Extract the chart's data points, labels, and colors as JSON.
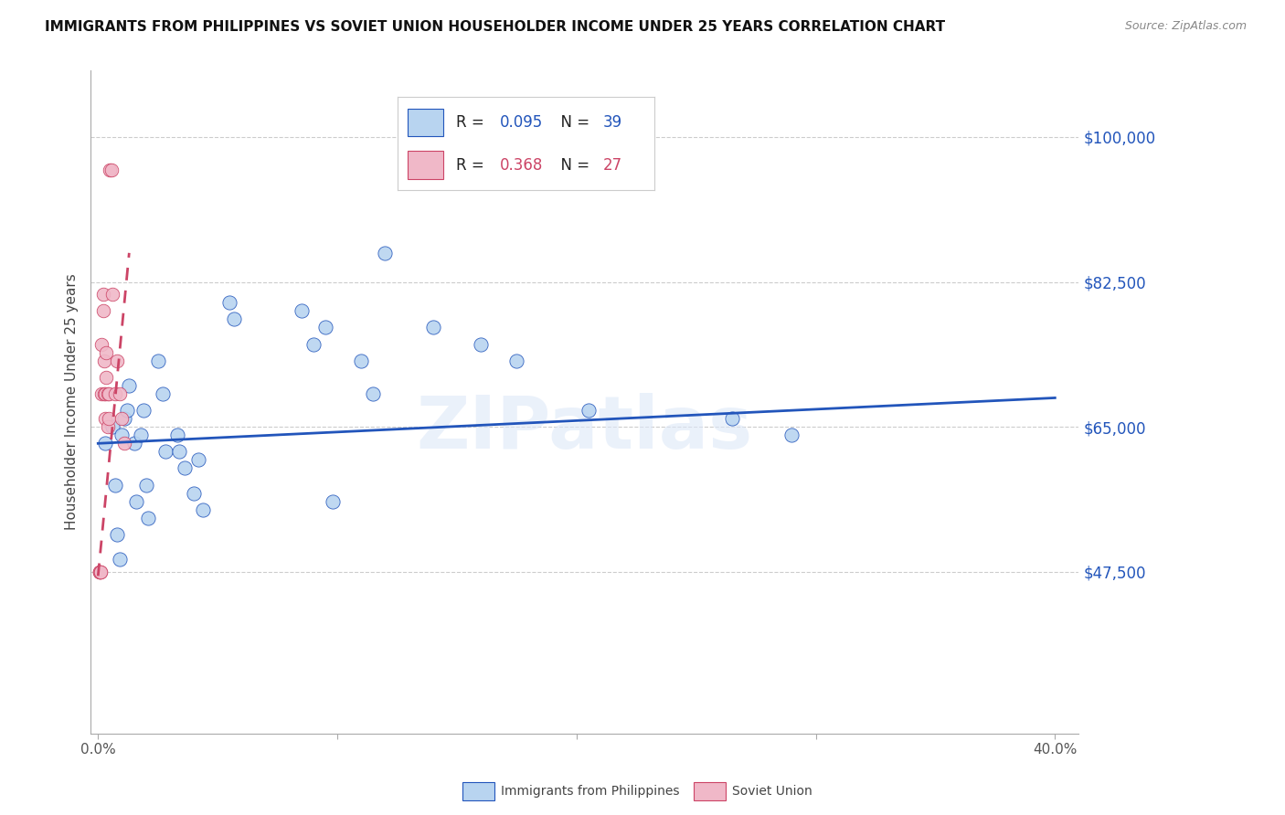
{
  "title": "IMMIGRANTS FROM PHILIPPINES VS SOVIET UNION HOUSEHOLDER INCOME UNDER 25 YEARS CORRELATION CHART",
  "source": "Source: ZipAtlas.com",
  "ylabel": "Householder Income Under 25 years",
  "xlim": [
    -0.003,
    0.41
  ],
  "ylim": [
    28000,
    108000
  ],
  "yticks": [
    47500,
    65000,
    82500,
    100000
  ],
  "ytick_labels": [
    "$47,500",
    "$65,000",
    "$82,500",
    "$100,000"
  ],
  "xticks": [
    0.0,
    0.1,
    0.2,
    0.3,
    0.4
  ],
  "xtick_labels_sparse": [
    "0.0%",
    "",
    "",
    "",
    "40.0%"
  ],
  "philippines_R": 0.095,
  "philippines_N": 39,
  "soviet_R": 0.368,
  "soviet_N": 27,
  "philippines_color": "#b8d4f0",
  "soviet_color": "#f0b8c8",
  "trend_blue": "#2255bb",
  "trend_pink": "#cc4466",
  "philippines_x": [
    0.003,
    0.006,
    0.007,
    0.008,
    0.009,
    0.01,
    0.011,
    0.012,
    0.013,
    0.015,
    0.016,
    0.018,
    0.019,
    0.02,
    0.021,
    0.025,
    0.027,
    0.028,
    0.033,
    0.034,
    0.036,
    0.04,
    0.042,
    0.044,
    0.055,
    0.057,
    0.085,
    0.09,
    0.095,
    0.098,
    0.11,
    0.115,
    0.12,
    0.14,
    0.16,
    0.175,
    0.205,
    0.265,
    0.29
  ],
  "philippines_y": [
    63000,
    65000,
    58000,
    52000,
    49000,
    64000,
    66000,
    67000,
    70000,
    63000,
    56000,
    64000,
    67000,
    58000,
    54000,
    73000,
    69000,
    62000,
    64000,
    62000,
    60000,
    57000,
    61000,
    55000,
    80000,
    78000,
    79000,
    75000,
    77000,
    56000,
    73000,
    69000,
    86000,
    77000,
    75000,
    73000,
    67000,
    66000,
    64000
  ],
  "soviet_x": [
    0.0005,
    0.0005,
    0.0005,
    0.001,
    0.001,
    0.0015,
    0.0015,
    0.002,
    0.002,
    0.0025,
    0.0025,
    0.003,
    0.003,
    0.0035,
    0.0035,
    0.004,
    0.004,
    0.0045,
    0.0045,
    0.005,
    0.0055,
    0.006,
    0.007,
    0.008,
    0.009,
    0.01,
    0.011
  ],
  "soviet_y": [
    47500,
    47500,
    47500,
    47500,
    47500,
    69000,
    75000,
    79000,
    81000,
    73000,
    69000,
    66000,
    69000,
    71000,
    74000,
    69000,
    65000,
    66000,
    69000,
    96000,
    96000,
    81000,
    69000,
    73000,
    69000,
    66000,
    63000
  ],
  "watermark": "ZIPatlas",
  "grid_color": "#cccccc",
  "spine_color": "#aaaaaa"
}
